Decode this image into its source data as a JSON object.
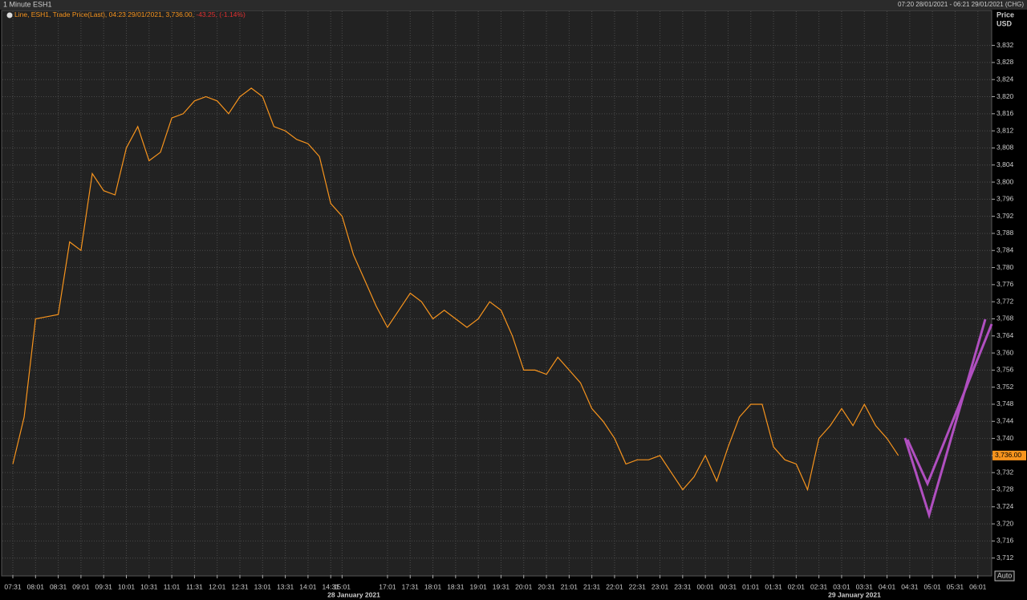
{
  "chart_data": {
    "type": "line",
    "title": "1 Minute ESH1",
    "range_text": "07:20 28/01/2021 - 06:21 29/01/2021 (CHG)",
    "legend": {
      "label": "Line, ESH1, Trade Price(Last), 04:23 29/01/2021, 3,736.00,",
      "change": "-43.25,",
      "change_pct": "(-1.14%)"
    },
    "y_axis_title": "Price",
    "y_axis_unit": "USD",
    "last_price_label": "3,736.00",
    "auto_label": "Auto",
    "date_labels": [
      "28 January 2021",
      "29 January 2021"
    ],
    "x": [
      "07:31",
      null,
      "08:01",
      null,
      "08:31",
      null,
      "09:01",
      null,
      "09:31",
      null,
      "10:01",
      null,
      "10:31",
      null,
      "11:01",
      null,
      "11:31",
      null,
      "12:01",
      null,
      "12:31",
      null,
      "13:01",
      null,
      "13:31",
      null,
      "14:01",
      null,
      "14:31",
      "15:01",
      null,
      null,
      null,
      "17:01",
      null,
      "17:31",
      null,
      "18:01",
      null,
      "18:31",
      null,
      "19:01",
      null,
      "19:31",
      null,
      "20:01",
      null,
      "20:31",
      null,
      "21:01",
      null,
      "21:31",
      null,
      "22:01",
      null,
      "22:31",
      null,
      "23:01",
      null,
      "23:31",
      null,
      "00:01",
      null,
      "00:31",
      null,
      "01:01",
      null,
      "01:31",
      null,
      "02:01",
      null,
      "02:31",
      null,
      "03:01",
      null,
      "03:31",
      null,
      "04:01",
      null,
      "04:31",
      null,
      "05:01",
      null,
      "05:31",
      null,
      "06:01"
    ],
    "series": [
      {
        "color": "#f7941d",
        "values": [
          3734,
          3745,
          3768,
          3768.5,
          3769,
          3786,
          3784,
          3802,
          3798,
          3797,
          3808,
          3813,
          3805,
          3807,
          3815,
          3816,
          3819,
          3820,
          3819,
          3816,
          3820,
          3822,
          3820,
          3813,
          3812,
          3810,
          3809,
          3806,
          3795,
          3792,
          3783,
          3777,
          3771,
          3766,
          3770,
          3774,
          3772,
          3768,
          3770,
          3768,
          3766,
          3768,
          3772,
          3770,
          3764,
          3756,
          3756,
          3755,
          3759,
          3756,
          3753,
          3747,
          3744,
          3740,
          3734,
          3735,
          3735,
          3736,
          3732,
          3728,
          3731,
          3736,
          3730,
          3738,
          3745,
          3748,
          3748,
          3738,
          3735,
          3734,
          3728,
          3740,
          3743,
          3747,
          3743,
          3748,
          3743,
          3740,
          3736,
          null,
          null,
          null,
          null,
          null,
          null,
          null
        ]
      }
    ],
    "ylim": [
      3708,
      3840
    ],
    "yticks": [
      {
        "value": 3712,
        "label": "3,712"
      },
      {
        "value": 3716,
        "label": "3,716"
      },
      {
        "value": 3720,
        "label": "3,720"
      },
      {
        "value": 3724,
        "label": "3,724"
      },
      {
        "value": 3728,
        "label": "3,728"
      },
      {
        "value": 3732,
        "label": "3,732"
      },
      {
        "value": 3736,
        "label": "3,736"
      },
      {
        "value": 3740,
        "label": "3,740"
      },
      {
        "value": 3744,
        "label": "3,744"
      },
      {
        "value": 3748,
        "label": "3,748"
      },
      {
        "value": 3752,
        "label": "3,752"
      },
      {
        "value": 3756,
        "label": "3,756"
      },
      {
        "value": 3760,
        "label": "3,760"
      },
      {
        "value": 3764,
        "label": "3,764"
      },
      {
        "value": 3768,
        "label": "3,768"
      },
      {
        "value": 3772,
        "label": "3,772"
      },
      {
        "value": 3776,
        "label": "3,776"
      },
      {
        "value": 3780,
        "label": "3,780"
      },
      {
        "value": 3784,
        "label": "3,784"
      },
      {
        "value": 3788,
        "label": "3,788"
      },
      {
        "value": 3792,
        "label": "3,792"
      },
      {
        "value": 3796,
        "label": "3,796"
      },
      {
        "value": 3800,
        "label": "3,800"
      },
      {
        "value": 3804,
        "label": "3,804"
      },
      {
        "value": 3808,
        "label": "3,808"
      },
      {
        "value": 3812,
        "label": "3,812"
      },
      {
        "value": 3816,
        "label": "3,816"
      },
      {
        "value": 3820,
        "label": "3,820"
      },
      {
        "value": 3824,
        "label": "3,824"
      },
      {
        "value": 3828,
        "label": "3,828"
      },
      {
        "value": 3832,
        "label": "3,832"
      }
    ],
    "grid": true
  }
}
